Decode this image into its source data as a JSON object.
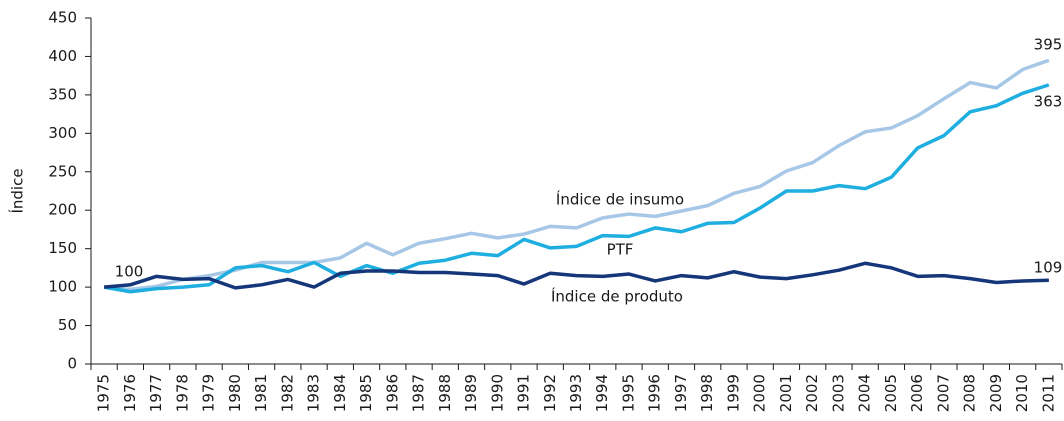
{
  "chart_data": {
    "type": "line",
    "y_label": "Índice",
    "categories": [
      "1975",
      "1976",
      "1977",
      "1978",
      "1979",
      "1980",
      "1981",
      "1982",
      "1983",
      "1984",
      "1985",
      "1986",
      "1987",
      "1988",
      "1989",
      "1990",
      "1991",
      "1992",
      "1993",
      "1994",
      "1995",
      "1996",
      "1997",
      "1998",
      "1999",
      "2000",
      "2001",
      "2002",
      "2003",
      "2004",
      "2005",
      "2006",
      "2007",
      "2008",
      "2009",
      "2010",
      "2011"
    ],
    "series": [
      {
        "name": "Índice de insumo",
        "color": "#a7c7e7",
        "values": [
          100,
          97,
          101,
          110,
          115,
          122,
          132,
          132,
          132,
          138,
          157,
          142,
          157,
          163,
          170,
          164,
          169,
          179,
          177,
          190,
          195,
          192,
          199,
          206,
          222,
          231,
          251,
          262,
          284,
          302,
          307,
          323,
          345,
          366,
          359,
          383,
          395
        ]
      },
      {
        "name": "PTF",
        "color": "#1eaedf",
        "values": [
          100,
          94,
          98,
          100,
          103,
          125,
          128,
          120,
          132,
          114,
          128,
          118,
          131,
          135,
          144,
          141,
          162,
          151,
          153,
          167,
          166,
          177,
          172,
          183,
          184,
          203,
          225,
          225,
          232,
          228,
          243,
          281,
          297,
          328,
          336,
          352,
          363
        ]
      },
      {
        "name": "Índice de produto",
        "color": "#15377a",
        "values": [
          100,
          103,
          114,
          110,
          111,
          99,
          103,
          110,
          100,
          118,
          121,
          121,
          119,
          119,
          117,
          115,
          104,
          118,
          115,
          114,
          117,
          108,
          115,
          112,
          120,
          113,
          111,
          116,
          122,
          131,
          125,
          114,
          115,
          111,
          106,
          108,
          109
        ]
      }
    ],
    "ylim": [
      0,
      450
    ],
    "yticks": [
      0,
      50,
      100,
      150,
      200,
      250,
      300,
      350,
      400,
      450
    ],
    "grid": false
  }
}
